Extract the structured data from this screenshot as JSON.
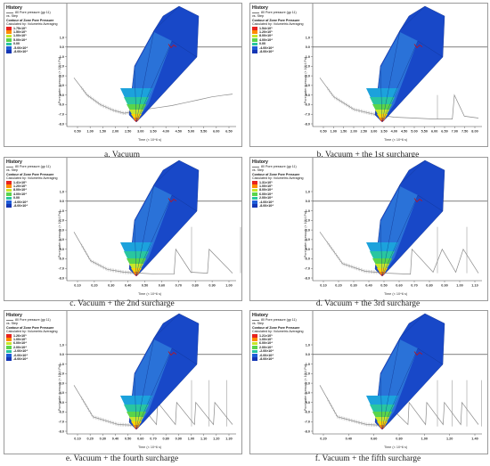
{
  "legend_common": {
    "history": "History",
    "series": "80 Pore pressure (gp 11)",
    "vs_step": "vs. Step",
    "contour": "Contour of Zone Pore Pressure",
    "calc": "Calculated by: Volumetric Averaging"
  },
  "axis_labels": {
    "y": "Pore water pressure (× 10^4 Pa)",
    "x": "Time (× 10^6 s)"
  },
  "y_ticks": [
    "1.0",
    "0.0",
    "-1.0",
    "-2.0",
    "-3.0",
    "-4.0",
    "-5.0",
    "-6.0",
    "-7.0",
    "-8.0"
  ],
  "colors": {
    "colorbar": [
      "#e8231e",
      "#ff8a00",
      "#ffd400",
      "#c8e62a",
      "#5ad44a",
      "#29c6a0",
      "#1ca2dc",
      "#1f5ed8",
      "#1436b4"
    ],
    "mesh_light": "#2a72d8",
    "mesh_dark": "#1848c8",
    "history": "#8a8a8a"
  },
  "panels": [
    {
      "id": "a",
      "caption": "a. Vacuum",
      "legend_values": [
        "1.75×10⁵",
        "1.50×10⁵",
        "1.00×10⁵",
        "5.00×10⁴",
        "0.00",
        "-5.00×10⁴",
        "-8.00×10⁴"
      ],
      "x_ticks": [
        "0.50",
        "1.00",
        "1.50",
        "2.00",
        "2.50",
        "3.00",
        "3.50",
        "4.00",
        "4.50",
        "5.00",
        "5.50",
        "6.00",
        "6.50"
      ],
      "spikes": 0,
      "chart_data": {
        "type": "line",
        "xlabel": "Time (× 10^6 s)",
        "ylabel": "Pore water pressure (× 10^4 Pa)",
        "ylim": [
          -8.0,
          1.0
        ],
        "series": [
          {
            "name": "80 Pore pressure (gp 11)",
            "x": [
              0.3,
              0.8,
              1.3,
              1.8,
              2.2,
              2.6,
              3.0,
              3.5,
              4.0,
              4.5,
              5.0,
              5.5,
              6.0,
              6.3
            ],
            "y": [
              -3.2,
              -5.0,
              -6.0,
              -6.6,
              -6.9,
              -6.7,
              -6.5,
              -6.3,
              -6.1,
              -5.8,
              -5.5,
              -5.2,
              -5.0,
              -4.9
            ]
          }
        ]
      }
    },
    {
      "id": "b",
      "caption": "b. Vacuum + the 1st surcharge",
      "legend_values": [
        "1.54×10⁵",
        "1.20×10⁵",
        "8.00×10⁴",
        "4.00×10⁴",
        "0.00",
        "-4.00×10⁴",
        "-8.00×10⁴"
      ],
      "x_ticks": [
        "0.50",
        "1.00",
        "1.50",
        "2.00",
        "2.50",
        "3.00",
        "3.50",
        "4.00",
        "4.50",
        "5.00",
        "5.50",
        "6.00",
        "6.50",
        "7.00",
        "7.50",
        "8.00"
      ],
      "spikes": 1,
      "chart_data": {
        "type": "line",
        "xlabel": "Time (× 10^6 s)",
        "ylabel": "Pore water pressure (× 10^4 Pa)",
        "ylim": [
          -8.0,
          1.0
        ],
        "series": [
          {
            "name": "80 Pore pressure (gp 11)",
            "x": [
              0.3,
              1.0,
              2.0,
              3.0,
              4.0,
              5.0,
              6.0,
              6.9,
              7.0,
              7.5,
              8.2
            ],
            "y": [
              -3.2,
              -5.2,
              -6.5,
              -7.0,
              -7.3,
              -7.4,
              -7.5,
              -7.5,
              -5.0,
              -7.2,
              -7.4
            ]
          }
        ]
      }
    },
    {
      "id": "c",
      "caption": "c. Vacuum + the 2nd surcharge",
      "legend_values": [
        "1.41×10⁵",
        "1.20×10⁵",
        "8.00×10⁴",
        "4.00×10⁴",
        "0.00",
        "-4.00×10⁴",
        "-8.00×10⁴"
      ],
      "x_ticks": [
        "0.10",
        "0.20",
        "0.30",
        "0.40",
        "0.50",
        "0.60",
        "0.70",
        "0.80",
        "0.90",
        "1.00"
      ],
      "spikes": 2,
      "chart_data": {
        "type": "line",
        "xlabel": "Time (× 10^6 s)",
        "ylabel": "Pore water pressure (× 10^4 Pa)",
        "ylim": [
          -8.0,
          1.0
        ],
        "series": [
          {
            "name": "80 Pore pressure (gp 11)",
            "x": [
              0.05,
              0.15,
              0.25,
              0.35,
              0.45,
              0.55,
              0.65,
              0.66,
              0.75,
              0.85,
              0.86,
              1.0
            ],
            "y": [
              -3.2,
              -6.2,
              -7.1,
              -7.4,
              -7.5,
              -7.6,
              -7.6,
              -5.0,
              -7.4,
              -7.5,
              -5.0,
              -7.5
            ]
          }
        ]
      }
    },
    {
      "id": "d",
      "caption": "d. Vacuum + the 3rd surcharge",
      "legend_values": [
        "1.31×10⁵",
        "1.00×10⁵",
        "8.00×10⁴",
        "6.00×10⁴",
        "2.00×10⁴",
        "-4.00×10⁴",
        "-8.00×10⁴"
      ],
      "x_ticks": [
        "0.10",
        "0.20",
        "0.30",
        "0.40",
        "0.50",
        "0.60",
        "0.70",
        "0.80",
        "0.90",
        "1.00",
        "1.10"
      ],
      "spikes": 3,
      "chart_data": {
        "type": "line",
        "xlabel": "Time (× 10^6 s)",
        "ylabel": "Pore water pressure (× 10^4 Pa)",
        "ylim": [
          -8.0,
          1.0
        ],
        "series": [
          {
            "name": "80 Pore pressure (gp 11)",
            "x": [
              0.05,
              0.2,
              0.35,
              0.5,
              0.65,
              0.66,
              0.8,
              0.86,
              0.95,
              1.0,
              1.1
            ],
            "y": [
              -3.2,
              -6.5,
              -7.3,
              -7.5,
              -7.6,
              -5.0,
              -7.4,
              -5.0,
              -7.4,
              -5.0,
              -7.5
            ]
          }
        ]
      }
    },
    {
      "id": "e",
      "caption": "e. Vacuum + the fourth surcharge",
      "legend_values": [
        "1.26×10⁵",
        "1.00×10⁵",
        "6.00×10⁴",
        "2.00×10⁴",
        "-2.00×10⁴",
        "-6.00×10⁴",
        "-8.00×10⁴"
      ],
      "x_ticks": [
        "0.10",
        "0.20",
        "0.30",
        "0.40",
        "0.50",
        "0.60",
        "0.70",
        "0.80",
        "0.90",
        "1.00",
        "1.10",
        "1.20",
        "1.30"
      ],
      "spikes": 5,
      "chart_data": {
        "type": "line",
        "xlabel": "Time (× 10^6 s)",
        "ylabel": "Pore water pressure (× 10^4 Pa)",
        "ylim": [
          -8.0,
          1.0
        ],
        "series": [
          {
            "name": "80 Pore pressure (gp 11)",
            "x": [
              0.05,
              0.2,
              0.4,
              0.55,
              0.56,
              0.7,
              0.71,
              0.85,
              0.86,
              1.0,
              1.01,
              1.15,
              1.16,
              1.3
            ],
            "y": [
              -3.2,
              -6.5,
              -7.3,
              -7.4,
              -5.0,
              -7.3,
              -5.0,
              -7.3,
              -5.0,
              -7.3,
              -5.0,
              -7.3,
              -5.0,
              -7.3
            ]
          }
        ]
      }
    },
    {
      "id": "f",
      "caption": "f. Vacuum + the fifth surcharge",
      "legend_values": [
        "1.21×10⁵",
        "1.00×10⁵",
        "6.00×10⁴",
        "2.00×10⁴",
        "-2.00×10⁴",
        "-6.00×10⁴",
        "-8.00×10⁴"
      ],
      "x_ticks": [
        "0.20",
        "0.40",
        "0.60",
        "0.80",
        "1.00",
        "1.20",
        "1.40"
      ],
      "spikes": 6,
      "chart_data": {
        "type": "line",
        "xlabel": "Time (× 10^6 s)",
        "ylabel": "Pore water pressure (× 10^4 Pa)",
        "ylim": [
          -8.0,
          1.0
        ],
        "series": [
          {
            "name": "80 Pore pressure (gp 11)",
            "x": [
              0.05,
              0.2,
              0.45,
              0.6,
              0.61,
              0.8,
              0.81,
              0.95,
              0.96,
              1.1,
              1.11,
              1.25,
              1.26,
              1.4
            ],
            "y": [
              -3.2,
              -6.5,
              -7.3,
              -7.4,
              -5.0,
              -7.3,
              -5.0,
              -7.3,
              -5.0,
              -7.3,
              -5.0,
              -7.3,
              -5.0,
              -7.3
            ]
          }
        ]
      }
    }
  ]
}
